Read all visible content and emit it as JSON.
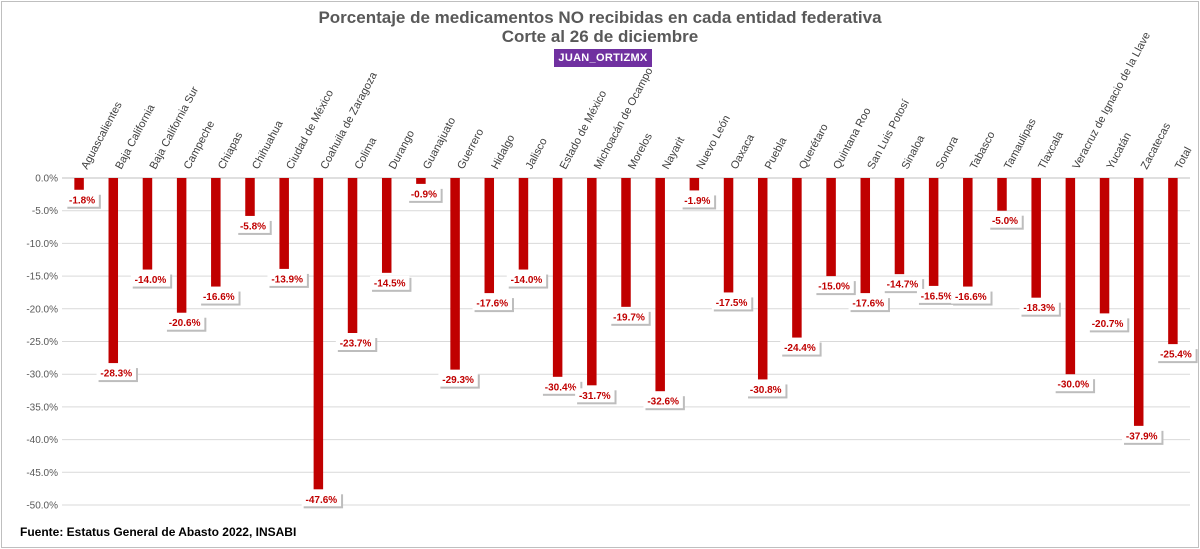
{
  "badge": "JUAN_ORTIZMX",
  "source": "Fuente: Estatus General de Abasto 2022, INSABI",
  "chart_data": {
    "type": "bar",
    "title": "Porcentaje de medicamentos NO recibidas en cada entidad federativa",
    "subtitle": "Corte al 26 de diciembre",
    "categories": [
      "Aguascalientes",
      "Baja California",
      "Baja California Sur",
      "Campeche",
      "Chiapas",
      "Chihuahua",
      "Ciudad de México",
      "Coahuila de Zaragoza",
      "Colima",
      "Durango",
      "Guanajuato",
      "Guerrero",
      "Hidalgo",
      "Jalisco",
      "Estado de México",
      "Michoacán de Ocampo",
      "Morelos",
      "Nayarit",
      "Nuevo León",
      "Oaxaca",
      "Puebla",
      "Querétaro",
      "Quintana Roo",
      "San Luis Potosí",
      "Sinaloa",
      "Sonora",
      "Tabasco",
      "Tamaulipas",
      "Tlaxcala",
      "Veracruz de Ignacio de la Llave",
      "Yucatán",
      "Zacatecas",
      "Total"
    ],
    "values": [
      -1.8,
      -28.3,
      -14.0,
      -20.6,
      -16.6,
      -5.8,
      -13.9,
      -47.6,
      -23.7,
      -14.5,
      -0.9,
      -29.3,
      -17.6,
      -14.0,
      -30.4,
      -31.7,
      -19.7,
      -32.6,
      -1.9,
      -17.5,
      -30.8,
      -24.4,
      -15.0,
      -17.6,
      -14.7,
      -16.5,
      -16.6,
      -5.0,
      -18.3,
      -30.0,
      -20.7,
      -37.9,
      -25.4
    ],
    "value_labels": [
      "-1.8%",
      "-28.3%",
      "-14.0%",
      "-20.6%",
      "-16.6%",
      "-5.8%",
      "-13.9%",
      "-47.6%",
      "-23.7%",
      "-14.5%",
      "-0.9%",
      "-29.3%",
      "-17.6%",
      "-14.0%",
      "-30.4%",
      "-31.7%",
      "-19.7%",
      "-32.6%",
      "-1.9%",
      "-17.5%",
      "-30.8%",
      "-24.4%",
      "-15.0%",
      "-17.6%",
      "-14.7%",
      "-16.5%",
      "-16.6%",
      "-5.0%",
      "-18.3%",
      "-30.0%",
      "-20.7%",
      "-37.9%",
      "-25.4%"
    ],
    "y_ticks": [
      "0.0%",
      "-5.0%",
      "-10.0%",
      "-15.0%",
      "-20.0%",
      "-25.0%",
      "-30.0%",
      "-35.0%",
      "-40.0%",
      "-45.0%",
      "-50.0%"
    ],
    "ylim": [
      -50,
      0
    ],
    "grid": true,
    "legend": "none",
    "bar_color": "#c00000",
    "label_color": "#c00000",
    "grid_color": "#d9d9d9"
  }
}
